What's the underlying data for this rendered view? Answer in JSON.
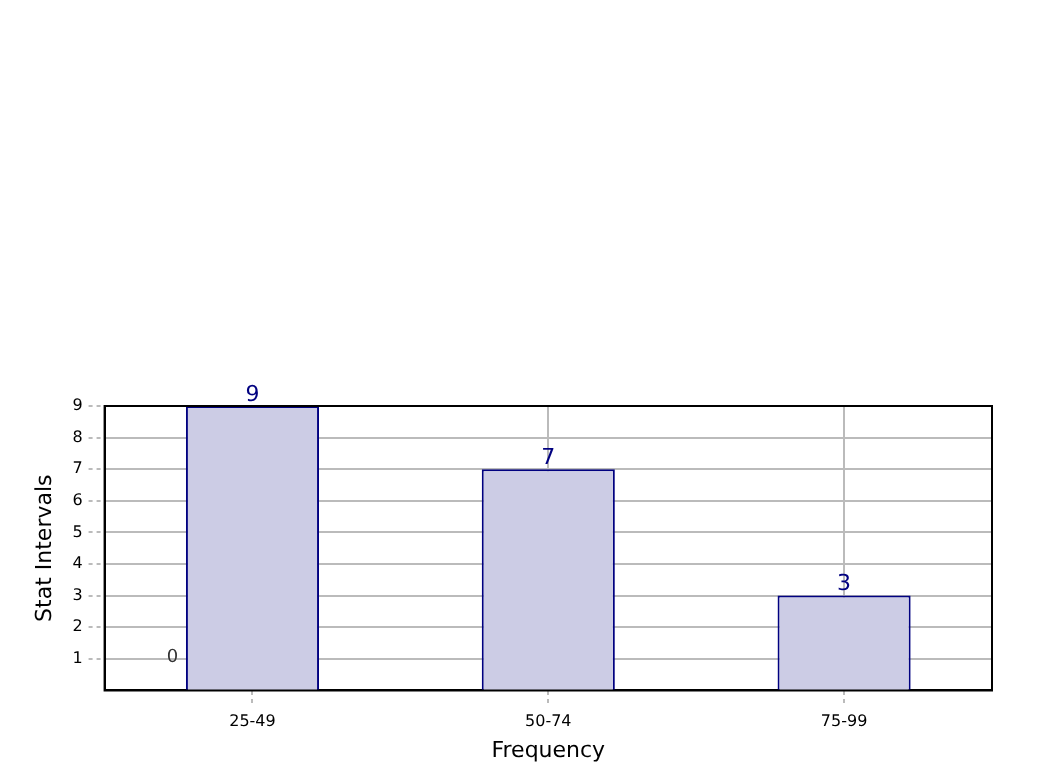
{
  "chart_data": {
    "type": "bar",
    "xlabel": "Frequency",
    "ylabel": "Stat Intervals",
    "categories": [
      "25-49",
      "50-74",
      "75-99"
    ],
    "values": [
      9,
      7,
      3
    ],
    "color": "#cccce5",
    "ylim": [
      0,
      9
    ],
    "yticks": [
      1,
      2,
      3,
      4,
      5,
      6,
      7,
      8,
      9
    ],
    "grid": true,
    "data_labels": true,
    "annotations": [
      "0"
    ]
  }
}
